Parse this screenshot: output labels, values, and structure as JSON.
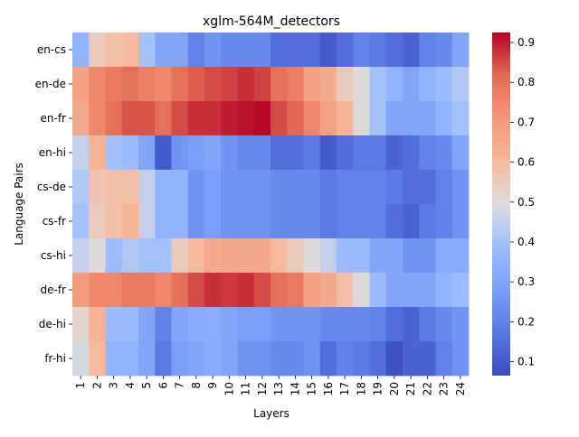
{
  "chart_data": {
    "type": "heatmap",
    "title": "xglm-564M_detectors",
    "xlabel": "Layers",
    "ylabel": "Language Pairs",
    "x": [
      "1",
      "2",
      "3",
      "4",
      "5",
      "6",
      "7",
      "8",
      "9",
      "10",
      "11",
      "12",
      "13",
      "14",
      "15",
      "16",
      "17",
      "18",
      "19",
      "20",
      "21",
      "22",
      "23",
      "24"
    ],
    "y": [
      "en-cs",
      "en-de",
      "en-fr",
      "en-hi",
      "cs-de",
      "cs-fr",
      "cs-hi",
      "de-fr",
      "de-hi",
      "fr-hi"
    ],
    "values": [
      [
        0.35,
        0.55,
        0.58,
        0.6,
        0.4,
        0.3,
        0.3,
        0.2,
        0.25,
        0.22,
        0.22,
        0.22,
        0.15,
        0.15,
        0.15,
        0.1,
        0.15,
        0.2,
        0.18,
        0.15,
        0.12,
        0.2,
        0.22,
        0.3
      ],
      [
        0.68,
        0.75,
        0.78,
        0.8,
        0.77,
        0.75,
        0.8,
        0.83,
        0.85,
        0.86,
        0.88,
        0.86,
        0.8,
        0.77,
        0.68,
        0.65,
        0.55,
        0.5,
        0.4,
        0.35,
        0.3,
        0.35,
        0.38,
        0.42
      ],
      [
        0.65,
        0.75,
        0.8,
        0.84,
        0.84,
        0.8,
        0.85,
        0.88,
        0.88,
        0.9,
        0.91,
        0.92,
        0.85,
        0.82,
        0.75,
        0.68,
        0.62,
        0.5,
        0.4,
        0.3,
        0.3,
        0.3,
        0.35,
        0.4
      ],
      [
        0.45,
        0.62,
        0.4,
        0.38,
        0.3,
        0.1,
        0.25,
        0.28,
        0.3,
        0.25,
        0.22,
        0.22,
        0.15,
        0.15,
        0.18,
        0.1,
        0.15,
        0.18,
        0.18,
        0.12,
        0.15,
        0.2,
        0.22,
        0.3
      ],
      [
        0.42,
        0.57,
        0.58,
        0.58,
        0.45,
        0.35,
        0.35,
        0.25,
        0.28,
        0.25,
        0.25,
        0.25,
        0.22,
        0.22,
        0.22,
        0.18,
        0.2,
        0.2,
        0.2,
        0.18,
        0.15,
        0.15,
        0.2,
        0.25
      ],
      [
        0.4,
        0.55,
        0.58,
        0.62,
        0.45,
        0.35,
        0.35,
        0.25,
        0.28,
        0.25,
        0.25,
        0.25,
        0.22,
        0.22,
        0.22,
        0.18,
        0.2,
        0.2,
        0.2,
        0.15,
        0.12,
        0.18,
        0.2,
        0.25
      ],
      [
        0.45,
        0.5,
        0.38,
        0.42,
        0.4,
        0.4,
        0.55,
        0.6,
        0.65,
        0.66,
        0.65,
        0.65,
        0.6,
        0.55,
        0.5,
        0.45,
        0.38,
        0.38,
        0.3,
        0.3,
        0.25,
        0.25,
        0.32,
        0.32
      ],
      [
        0.7,
        0.75,
        0.75,
        0.78,
        0.78,
        0.75,
        0.8,
        0.85,
        0.88,
        0.87,
        0.88,
        0.85,
        0.8,
        0.78,
        0.68,
        0.65,
        0.58,
        0.5,
        0.38,
        0.3,
        0.3,
        0.3,
        0.35,
        0.38
      ],
      [
        0.52,
        0.62,
        0.38,
        0.38,
        0.3,
        0.2,
        0.3,
        0.32,
        0.33,
        0.3,
        0.28,
        0.28,
        0.25,
        0.25,
        0.25,
        0.22,
        0.22,
        0.22,
        0.2,
        0.15,
        0.12,
        0.18,
        0.22,
        0.25
      ],
      [
        0.48,
        0.6,
        0.35,
        0.35,
        0.3,
        0.18,
        0.28,
        0.3,
        0.32,
        0.3,
        0.25,
        0.25,
        0.22,
        0.22,
        0.25,
        0.15,
        0.2,
        0.18,
        0.15,
        0.08,
        0.12,
        0.12,
        0.2,
        0.25
      ]
    ],
    "colorscale": "coolwarm",
    "vmin": 0.065,
    "vmax": 0.925,
    "colorbar_ticks": [
      "0.1",
      "0.2",
      "0.3",
      "0.4",
      "0.5",
      "0.6",
      "0.7",
      "0.8",
      "0.9"
    ]
  }
}
